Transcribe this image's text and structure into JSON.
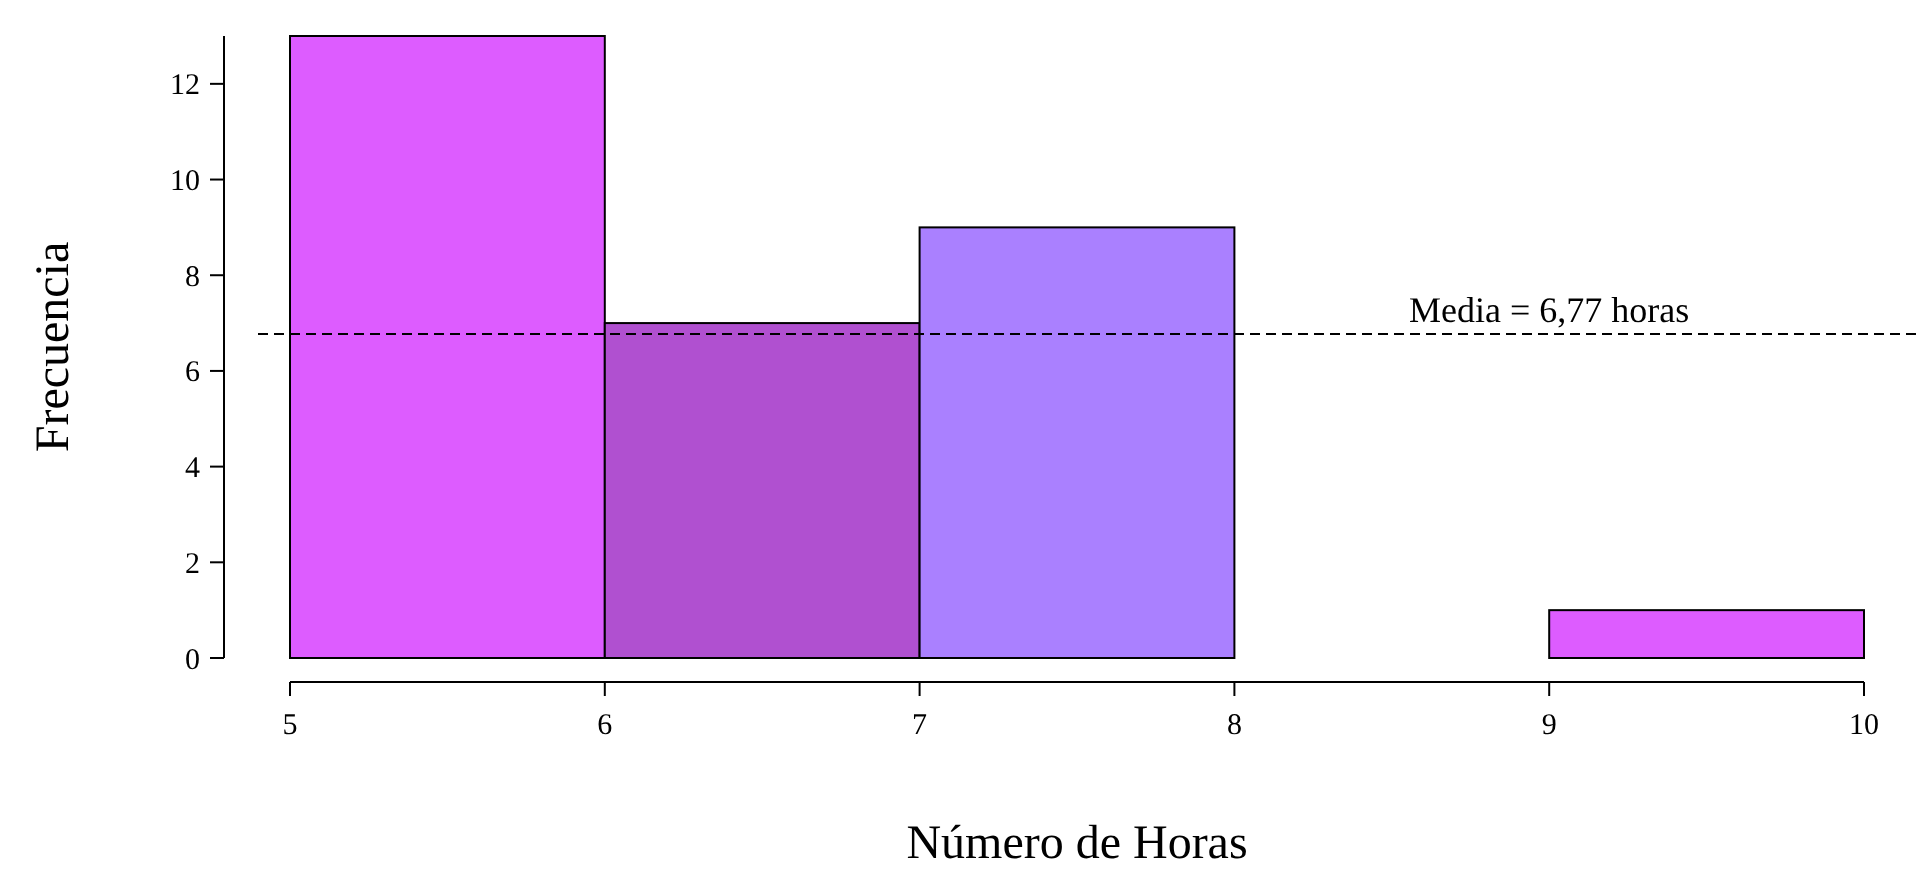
{
  "chart_data": {
    "type": "histogram",
    "xlabel": "Número de Horas",
    "ylabel": "Frecuencia",
    "bins": [
      5,
      6,
      7,
      8,
      9,
      10
    ],
    "values": [
      13,
      7,
      9,
      0,
      1
    ],
    "colors": [
      "#dd5cff",
      "#b050d0",
      "#aa80ff",
      "#aa80ff",
      "#dd5cff"
    ],
    "xlim": [
      5,
      10
    ],
    "xticks": [
      5,
      6,
      7,
      8,
      9,
      10
    ],
    "ylim": [
      0,
      13
    ],
    "yticks": [
      0,
      2,
      4,
      6,
      8,
      10,
      12
    ],
    "ref_lines": [
      {
        "axis": "y",
        "value": 6.77,
        "label": "Media = 6,77 horas",
        "line_style": "dashed",
        "color": "#000000"
      }
    ],
    "grid": false
  }
}
